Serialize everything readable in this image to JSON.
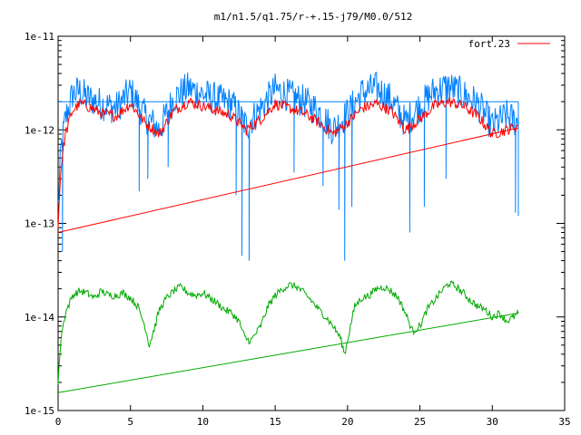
{
  "chart_data": {
    "type": "line",
    "title": "m1/n1.5/q1.75/r-+.15-j79/M0.0/512",
    "xlabel": "",
    "ylabel": "",
    "xlim": [
      0,
      35
    ],
    "ylim": [
      1e-15,
      1e-11
    ],
    "y_scale": "log",
    "x_ticks": [
      0,
      5,
      10,
      15,
      20,
      25,
      30,
      35
    ],
    "y_ticks": [
      {
        "value": 1e-15,
        "label": "1e-15"
      },
      {
        "value": 1e-14,
        "label": "1e-14"
      },
      {
        "value": 1e-13,
        "label": "1e-13"
      },
      {
        "value": 1e-12,
        "label": "1e-12"
      },
      {
        "value": 1e-11,
        "label": "1e-11"
      }
    ],
    "grid": false,
    "legend_position": "top-right",
    "series": [
      {
        "name": "fort.23",
        "color": "#ff0000",
        "x": [
          0,
          0.2,
          0.5,
          1,
          1.5,
          2,
          3,
          4,
          5,
          6,
          7,
          8,
          9,
          10,
          11,
          12,
          13,
          14,
          15,
          16,
          17,
          18,
          19,
          20,
          21,
          22,
          23,
          24,
          25,
          26,
          27,
          28,
          29,
          30,
          31,
          31.8
        ],
        "y": [
          1e-13,
          4e-13,
          9e-13,
          1.6e-12,
          1.9e-12,
          1.8e-12,
          1.5e-12,
          1.4e-12,
          1.9e-12,
          1.2e-12,
          9e-13,
          1.6e-12,
          2e-12,
          1.8e-12,
          1.6e-12,
          1.4e-12,
          1e-12,
          1.3e-12,
          1.9e-12,
          1.7e-12,
          1.5e-12,
          1.2e-12,
          9e-13,
          1.2e-12,
          1.7e-12,
          1.9e-12,
          1.6e-12,
          1e-12,
          1.3e-12,
          1.8e-12,
          2e-12,
          1.8e-12,
          1.4e-12,
          9e-13,
          1e-12,
          1.1e-12
        ]
      },
      {
        "name": "",
        "color": "#0080ff",
        "x": [
          0,
          0.2,
          0.5,
          1,
          1.5,
          2,
          3,
          4,
          5,
          6,
          7,
          8,
          9,
          10,
          11,
          12,
          13,
          14,
          15,
          16,
          17,
          18,
          19,
          20,
          21,
          22,
          23,
          24,
          25,
          26,
          27,
          28,
          29,
          30,
          31,
          31.8
        ],
        "y": [
          1.5e-13,
          6e-13,
          1.3e-12,
          2.4e-12,
          2.6e-12,
          2.2e-12,
          1.9e-12,
          1.7e-12,
          2.6e-12,
          1.4e-12,
          1e-12,
          2.2e-12,
          2.8e-12,
          2.4e-12,
          2.1e-12,
          1.9e-12,
          1.1e-12,
          1.7e-12,
          2.7e-12,
          2.3e-12,
          2e-12,
          1.6e-12,
          1e-12,
          1.5e-12,
          2.5e-12,
          2.8e-12,
          2.1e-12,
          1.2e-12,
          1.8e-12,
          2.6e-12,
          2.9e-12,
          2.4e-12,
          1.9e-12,
          1.1e-12,
          1.4e-12,
          1.2e-12
        ],
        "spikes": [
          {
            "x": 0.3,
            "y": 5e-14
          },
          {
            "x": 5.6,
            "y": 2.2e-13
          },
          {
            "x": 6.2,
            "y": 3e-13
          },
          {
            "x": 7.6,
            "y": 4e-13
          },
          {
            "x": 12.3,
            "y": 2e-13
          },
          {
            "x": 12.7,
            "y": 4.5e-14
          },
          {
            "x": 13.2,
            "y": 4e-14
          },
          {
            "x": 16.3,
            "y": 3.5e-13
          },
          {
            "x": 18.3,
            "y": 2.5e-13
          },
          {
            "x": 19.4,
            "y": 1.4e-13
          },
          {
            "x": 19.8,
            "y": 4e-14
          },
          {
            "x": 20.3,
            "y": 1.5e-13
          },
          {
            "x": 24.3,
            "y": 8e-14
          },
          {
            "x": 25.3,
            "y": 1.5e-13
          },
          {
            "x": 26.8,
            "y": 3e-13
          },
          {
            "x": 31.6,
            "y": 1.3e-13
          }
        ]
      },
      {
        "name": "",
        "color": "#0080ff",
        "x": [
          0,
          31.8
        ],
        "y": [
          2e-12,
          2e-12
        ]
      },
      {
        "name": "",
        "color": "#ff0000",
        "x": [
          0,
          31.8
        ],
        "y": [
          8e-14,
          1.05e-12
        ]
      },
      {
        "name": "",
        "color": "#00aa00",
        "x": [
          0,
          0.2,
          0.5,
          1,
          1.5,
          2,
          2.5,
          3,
          3.5,
          4,
          4.5,
          5,
          5.5,
          6,
          6.3,
          6.7,
          7,
          7.5,
          8,
          8.5,
          9,
          9.5,
          10,
          10.5,
          11,
          11.5,
          12,
          12.5,
          12.9,
          13.3,
          14,
          14.5,
          15,
          15.5,
          16,
          16.5,
          17,
          17.5,
          18,
          18.5,
          19,
          19.5,
          19.8,
          20.2,
          20.5,
          21,
          21.5,
          22,
          22.5,
          23,
          23.5,
          24,
          24.5,
          25,
          25.5,
          26,
          26.5,
          27,
          27.5,
          28,
          28.5,
          29,
          29.5,
          30,
          30.5,
          31,
          31.5,
          31.8
        ],
        "y": [
          2e-15,
          6e-15,
          1.1e-14,
          1.7e-14,
          1.9e-14,
          1.8e-14,
          1.6e-14,
          1.9e-14,
          1.7e-14,
          1.7e-14,
          1.8e-14,
          1.6e-14,
          1.3e-14,
          8e-15,
          5e-15,
          8e-15,
          1.2e-14,
          1.6e-14,
          1.9e-14,
          2.1e-14,
          1.8e-14,
          1.7e-14,
          1.8e-14,
          1.6e-14,
          1.4e-14,
          1.2e-14,
          1.1e-14,
          9e-15,
          6e-15,
          5.5e-15,
          8e-15,
          1.3e-14,
          1.7e-14,
          2e-14,
          2.2e-14,
          2.1e-14,
          1.8e-14,
          1.5e-14,
          1.2e-14,
          1e-14,
          8e-15,
          6e-15,
          4e-15,
          8e-15,
          1.3e-14,
          1.6e-14,
          1.7e-14,
          2e-14,
          2.1e-14,
          1.9e-14,
          1.6e-14,
          1.1e-14,
          7e-15,
          8e-15,
          1.2e-14,
          1.5e-14,
          1.9e-14,
          2.3e-14,
          2.1e-14,
          1.8e-14,
          1.5e-14,
          1.3e-14,
          1.2e-14,
          1e-14,
          1.1e-14,
          9e-15,
          1e-14,
          1.1e-14
        ]
      },
      {
        "name": "",
        "color": "#00aa00",
        "x": [
          0,
          31.8
        ],
        "y": [
          1.55e-15,
          1.1e-14
        ]
      }
    ]
  }
}
